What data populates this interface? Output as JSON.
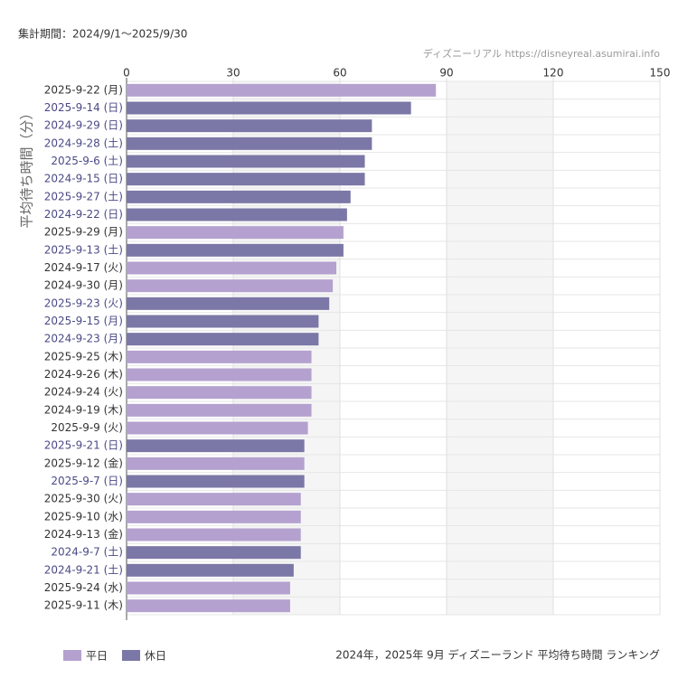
{
  "chart_data": {
    "type": "bar",
    "orientation": "horizontal",
    "period": "集計期間：2024/9/1～2025/9/30",
    "source": "ディズニーリアル https://disneyreal.asumirai.info",
    "title": "2024年，2025年 9月 ディズニーランド 平均待ち時間 ランキング",
    "y_label": "平均待ち時間（分）",
    "categories": [
      "2025-9-22 (月)",
      "2025-9-14 (日)",
      "2024-9-29 (日)",
      "2024-9-28 (土)",
      "2025-9-6 (土)",
      "2024-9-15 (日)",
      "2025-9-27 (土)",
      "2024-9-22 (日)",
      "2025-9-29 (月)",
      "2025-9-13 (土)",
      "2024-9-17 (火)",
      "2024-9-30 (月)",
      "2025-9-23 (火)",
      "2025-9-15 (月)",
      "2024-9-23 (月)",
      "2025-9-25 (木)",
      "2024-9-26 (木)",
      "2024-9-24 (火)",
      "2024-9-19 (木)",
      "2025-9-9 (火)",
      "2025-9-21 (日)",
      "2025-9-12 (金)",
      "2025-9-7 (日)",
      "2025-9-30 (火)",
      "2025-9-10 (水)",
      "2024-9-13 (金)",
      "2024-9-7 (土)",
      "2024-9-21 (土)",
      "2025-9-24 (水)",
      "2025-9-11 (木)"
    ],
    "series": [
      {
        "name": "平日",
        "color": "#b4a1cf",
        "values": [
          87,
          null,
          null,
          null,
          null,
          null,
          null,
          null,
          61,
          null,
          59,
          58,
          null,
          null,
          null,
          52,
          52,
          52,
          52,
          51,
          null,
          50,
          null,
          49,
          49,
          49,
          null,
          null,
          46,
          46
        ]
      },
      {
        "name": "休日",
        "color": "#7b77a6",
        "values": [
          null,
          80,
          69,
          69,
          67,
          67,
          63,
          62,
          null,
          61,
          null,
          null,
          57,
          54,
          54,
          null,
          null,
          null,
          null,
          null,
          50,
          null,
          50,
          null,
          null,
          null,
          49,
          47,
          null,
          null
        ]
      }
    ],
    "xlim": [
      0,
      150
    ],
    "xticks": [
      0,
      30,
      60,
      90,
      120,
      150
    ],
    "grid": true
  }
}
